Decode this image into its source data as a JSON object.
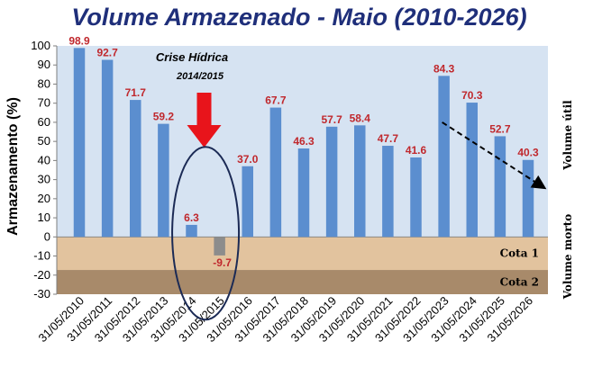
{
  "chart_data": {
    "type": "bar",
    "title": "Volume Armazenado - Maio (2010-2026)",
    "ylabel": "Armazenamento (%)",
    "ylim": [
      -30,
      100
    ],
    "yticks": [
      100,
      90,
      80,
      70,
      60,
      50,
      40,
      30,
      20,
      10,
      0,
      -10,
      -20,
      -30
    ],
    "categories": [
      "31/05/2010",
      "31/05/2011",
      "31/05/2012",
      "31/05/2013",
      "31/05/2014",
      "31/05/2015",
      "31/05/2016",
      "31/05/2017",
      "31/05/2018",
      "31/05/2019",
      "31/05/2020",
      "31/05/2021",
      "31/05/2022",
      "31/05/2023",
      "31/05/2024",
      "31/05/2025",
      "31/05/2026"
    ],
    "values": [
      98.9,
      92.7,
      71.7,
      59.2,
      6.3,
      -9.7,
      37.0,
      67.7,
      46.3,
      57.7,
      58.4,
      47.7,
      41.6,
      84.3,
      70.3,
      52.7,
      40.3
    ],
    "value_labels": [
      "98.9",
      "92.7",
      "71.7",
      "59.2",
      "6.3",
      "-9.7",
      "37.0",
      "67.7",
      "46.3",
      "57.7",
      "58.4",
      "47.7",
      "41.6",
      "84.3",
      "70.3",
      "52.7",
      "40.3"
    ],
    "grid": false,
    "zones": [
      {
        "label": "Cota 1",
        "from": 0,
        "to": -17.3,
        "color": "#e2c39e"
      },
      {
        "label": "Cota 2",
        "from": -17.3,
        "to": -30,
        "color": "#a88a6a"
      }
    ],
    "side_labels": {
      "upper": "Volume útil",
      "lower": "Volume morto"
    },
    "annotation": {
      "title": "Crise Hídrica",
      "subtitle": "2014/2015"
    },
    "colors": {
      "bar_positive": "#5b8ecf",
      "bar_negative": "#8c8c8c",
      "plot_background": "#d6e3f2",
      "title": "#1f2f7a",
      "data_label": "#c0282d",
      "arrow": "#e8141b",
      "ellipse": "#1b2a55"
    }
  }
}
